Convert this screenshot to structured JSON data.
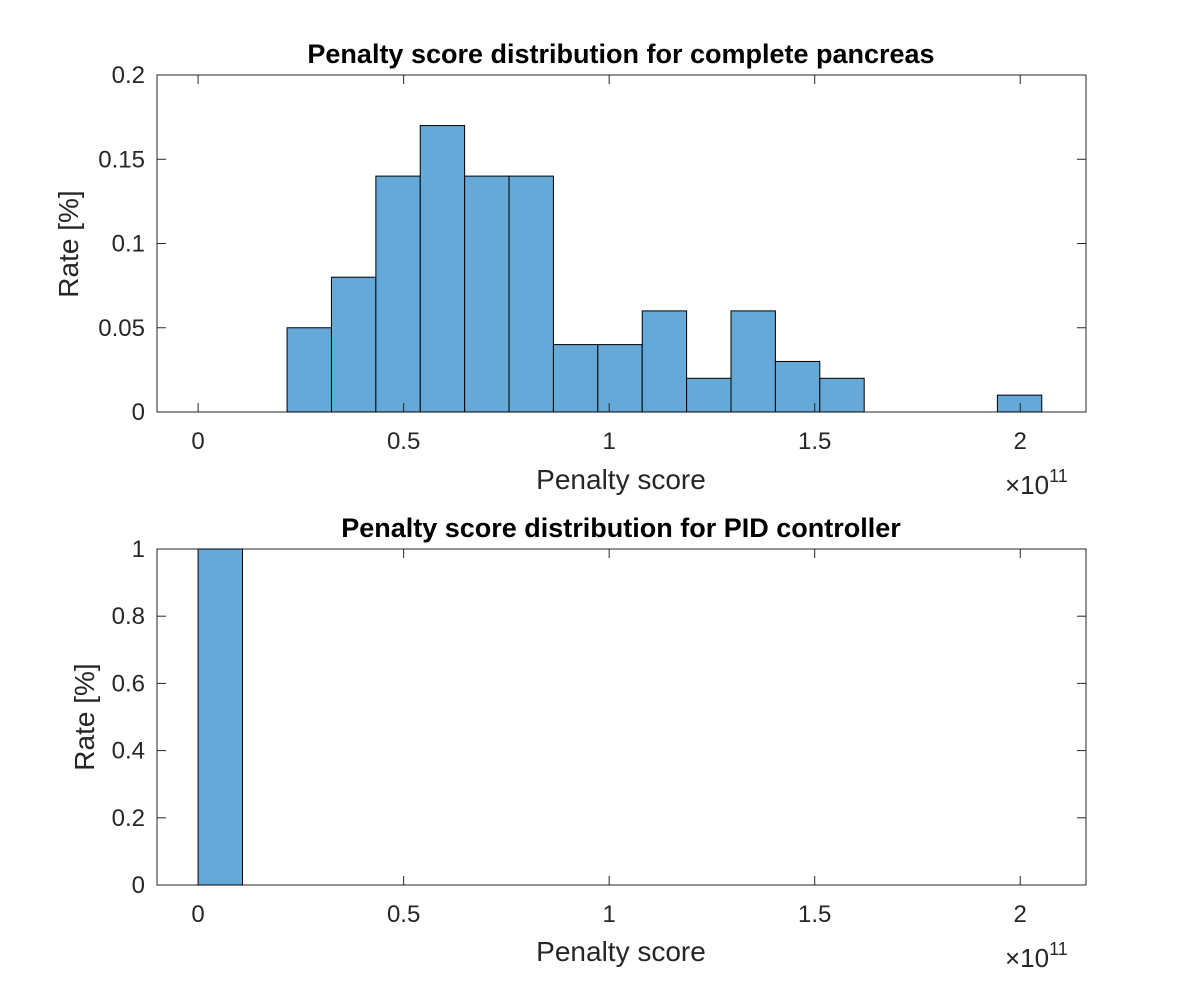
{
  "chart_data": [
    {
      "type": "bar",
      "title": "Penalty score distribution for complete pancreas",
      "xlabel": "Penalty score",
      "ylabel": "Rate [%]",
      "x_exponent_base": "×10",
      "x_exponent": "11",
      "xlim": [
        -0.1,
        2.16
      ],
      "ylim": [
        0,
        0.2
      ],
      "xticks": [
        0,
        0.5,
        1,
        1.5,
        2
      ],
      "xtick_labels": [
        "0",
        "0.5",
        "1",
        "1.5",
        "2"
      ],
      "yticks": [
        0,
        0.05,
        0.1,
        0.15,
        0.2
      ],
      "ytick_labels": [
        "0",
        "0.05",
        "0.1",
        "0.15",
        "0.2"
      ],
      "bar_color": "#64A9D8",
      "bin_edges": [
        0.2164,
        0.3244,
        0.4324,
        0.5404,
        0.6484,
        0.7564,
        0.8644,
        0.9724,
        1.0804,
        1.1884,
        1.2964,
        1.4044,
        1.5124,
        1.6204,
        1.7284,
        1.8364,
        1.9444,
        2.0524
      ],
      "values": [
        0.05,
        0.08,
        0.14,
        0.17,
        0.14,
        0.14,
        0.04,
        0.04,
        0.06,
        0.02,
        0.06,
        0.03,
        0.02,
        0,
        0,
        0,
        0.01
      ]
    },
    {
      "type": "bar",
      "title": "Penalty score distribution for PID controller",
      "xlabel": "Penalty score",
      "ylabel": "Rate [%]",
      "x_exponent_base": "×10",
      "x_exponent": "11",
      "xlim": [
        -0.1,
        2.16
      ],
      "ylim": [
        0,
        1
      ],
      "xticks": [
        0,
        0.5,
        1,
        1.5,
        2
      ],
      "xtick_labels": [
        "0",
        "0.5",
        "1",
        "1.5",
        "2"
      ],
      "yticks": [
        0,
        0.2,
        0.4,
        0.6,
        0.8,
        1
      ],
      "ytick_labels": [
        "0",
        "0.2",
        "0.4",
        "0.6",
        "0.8",
        "1"
      ],
      "bar_color": "#64A9D8",
      "bin_edges": [
        0,
        0.108
      ],
      "values": [
        1
      ]
    }
  ]
}
